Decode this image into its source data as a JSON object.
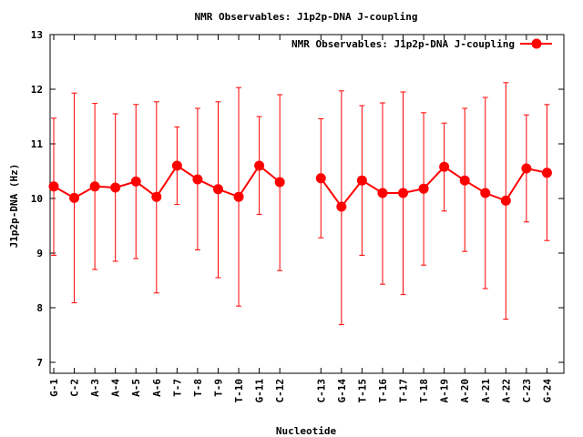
{
  "chart_data": {
    "type": "line",
    "title": "NMR Observables: J1p2p-DNA J-coupling",
    "xlabel": "Nucleotide",
    "ylabel": "J1p2p-DNA (Hz)",
    "ylim": [
      6.8,
      13
    ],
    "yticks": [
      "7",
      "8",
      "9",
      "10",
      "11",
      "12",
      "13"
    ],
    "legend": {
      "position": "top-right",
      "label": "NMR Observables: J1p2p-DNA J-coupling"
    },
    "series": [
      {
        "name": "NMR Observables: J1p2p-DNA J-coupling",
        "color": "#ff0000",
        "segments": [
          {
            "categories": [
              "G-1",
              "C-2",
              "A-3",
              "A-4",
              "A-5",
              "A-6",
              "T-7",
              "T-8",
              "T-9",
              "T-10",
              "G-11",
              "C-12"
            ],
            "values": [
              10.22,
              10.01,
              10.22,
              10.2,
              10.31,
              10.03,
              10.6,
              10.35,
              10.17,
              10.03,
              10.6,
              10.3
            ],
            "err_low": [
              8.96,
              8.09,
              8.7,
              8.85,
              8.9,
              8.27,
              9.89,
              9.06,
              8.55,
              8.03,
              9.71,
              8.68
            ],
            "err_high": [
              11.47,
              11.93,
              11.74,
              11.55,
              11.72,
              11.77,
              11.31,
              11.65,
              11.77,
              12.03,
              11.5,
              11.9
            ]
          },
          {
            "categories": [
              "C-13",
              "G-14",
              "T-15",
              "T-16",
              "T-17",
              "T-18",
              "A-19",
              "A-20",
              "A-21",
              "A-22",
              "C-23",
              "G-24"
            ],
            "values": [
              10.37,
              9.85,
              10.33,
              10.1,
              10.1,
              10.18,
              10.58,
              10.33,
              10.1,
              9.96,
              10.55,
              10.47
            ],
            "err_low": [
              9.28,
              7.69,
              8.96,
              8.43,
              8.24,
              8.78,
              9.77,
              9.03,
              8.35,
              7.79,
              9.57,
              9.23
            ],
            "err_high": [
              11.46,
              11.97,
              11.7,
              11.75,
              11.95,
              11.57,
              11.38,
              11.65,
              11.85,
              12.12,
              11.53,
              11.72
            ]
          }
        ]
      }
    ]
  }
}
